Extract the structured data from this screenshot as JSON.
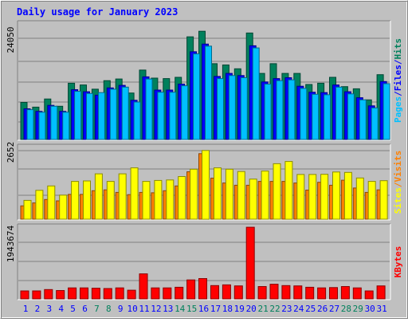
{
  "title": "Daily usage for January 2023",
  "colors": {
    "background": "#c0c0c0",
    "border_light": "#ffffff",
    "border_dark": "#808080",
    "plot_bg": "#c0c0c0",
    "grid": "#808080",
    "title": "#0000ff",
    "hits": "#00805c",
    "files": "#0000ff",
    "pages": "#00c0ff",
    "visits": "#ff8000",
    "sites": "#ffff00",
    "kbytes": "#ff0000",
    "weekday_label": "#0000ff",
    "weekend_label": "#00805c"
  },
  "chart_data": [
    {
      "type": "bar",
      "panel": "hits-files-pages",
      "categories": [
        "1",
        "2",
        "3",
        "4",
        "5",
        "6",
        "7",
        "8",
        "9",
        "10",
        "11",
        "12",
        "13",
        "14",
        "15",
        "16",
        "17",
        "18",
        "19",
        "20",
        "21",
        "22",
        "23",
        "24",
        "25",
        "26",
        "27",
        "28",
        "29",
        "30",
        "31"
      ],
      "ytick": "24050",
      "ylim": [
        0,
        27500
      ],
      "ylabel_parts": [
        {
          "text": "Pages",
          "color": "pages"
        },
        {
          "text": "/",
          "color": "files"
        },
        {
          "text": "Files",
          "color": "files"
        },
        {
          "text": "/",
          "color": "files"
        },
        {
          "text": "Hits",
          "color": "hits"
        }
      ],
      "series": [
        {
          "name": "Hits",
          "color": "hits",
          "values": [
            8700,
            7600,
            9500,
            7800,
            13200,
            12800,
            11800,
            13800,
            14200,
            10900,
            16300,
            14400,
            14300,
            14600,
            24100,
            25400,
            17800,
            17500,
            16600,
            25000,
            15500,
            17800,
            15500,
            15500,
            12900,
            13200,
            14600,
            12400,
            11900,
            9300,
            15200
          ]
        },
        {
          "name": "Files",
          "color": "files",
          "values": [
            7200,
            6600,
            8000,
            6600,
            11700,
            11200,
            10400,
            12100,
            12700,
            9200,
            14700,
            11600,
            11600,
            13000,
            20600,
            22400,
            14800,
            15500,
            15000,
            22000,
            13500,
            14300,
            14500,
            12500,
            11100,
            11000,
            12800,
            11200,
            9800,
            7900,
            13600
          ]
        },
        {
          "name": "Pages",
          "color": "pages",
          "values": [
            7000,
            6400,
            7800,
            6400,
            11300,
            10800,
            11000,
            11800,
            12300,
            8800,
            14200,
            11100,
            11100,
            12600,
            20100,
            21900,
            14300,
            15000,
            14500,
            21500,
            13000,
            13800,
            14000,
            12000,
            10600,
            10500,
            12300,
            10700,
            9300,
            7400,
            13100
          ]
        }
      ]
    },
    {
      "type": "bar",
      "panel": "sites-visits",
      "categories": [
        "1",
        "2",
        "3",
        "4",
        "5",
        "6",
        "7",
        "8",
        "9",
        "10",
        "11",
        "12",
        "13",
        "14",
        "15",
        "16",
        "17",
        "18",
        "19",
        "20",
        "21",
        "22",
        "23",
        "24",
        "25",
        "26",
        "27",
        "28",
        "29",
        "30",
        "31"
      ],
      "ytick": "2652",
      "ylim": [
        0,
        3200
      ],
      "ylabel_parts": [
        {
          "text": "Sites",
          "color": "sites"
        },
        {
          "text": "/",
          "color": "visits"
        },
        {
          "text": "Visits",
          "color": "visits"
        }
      ],
      "series": [
        {
          "name": "Visits",
          "color": "visits",
          "values": [
            580,
            710,
            860,
            800,
            1080,
            1080,
            1240,
            1280,
            1170,
            1070,
            1170,
            1150,
            1240,
            1450,
            2070,
            2860,
            1790,
            1580,
            1480,
            1480,
            1650,
            1650,
            1650,
            1580,
            1270,
            1610,
            1480,
            1700,
            1360,
            1170,
            1280
          ]
        },
        {
          "name": "Sites",
          "color": "sites",
          "values": [
            820,
            1260,
            1450,
            1050,
            1650,
            1670,
            1980,
            1650,
            1980,
            2240,
            1650,
            1690,
            1710,
            1860,
            2180,
            3000,
            2240,
            2180,
            2080,
            1750,
            2100,
            2420,
            2520,
            1950,
            1950,
            1960,
            2060,
            2040,
            1800,
            1650,
            1680
          ]
        }
      ]
    },
    {
      "type": "bar",
      "panel": "kbytes",
      "categories": [
        "1",
        "2",
        "3",
        "4",
        "5",
        "6",
        "7",
        "8",
        "9",
        "10",
        "11",
        "12",
        "13",
        "14",
        "15",
        "16",
        "17",
        "18",
        "19",
        "20",
        "21",
        "22",
        "23",
        "24",
        "25",
        "26",
        "27",
        "28",
        "29",
        "30",
        "31"
      ],
      "ytick": "1943674",
      "ylim": [
        0,
        2200000
      ],
      "ylabel_parts": [
        {
          "text": "KBytes",
          "color": "kbytes"
        }
      ],
      "series": [
        {
          "name": "KBytes",
          "color": "kbytes",
          "values": [
            240000,
            240000,
            280000,
            250000,
            330000,
            330000,
            320000,
            310000,
            330000,
            260000,
            750000,
            330000,
            330000,
            350000,
            570000,
            610000,
            400000,
            420000,
            390000,
            2150000,
            370000,
            440000,
            400000,
            390000,
            350000,
            330000,
            340000,
            370000,
            330000,
            240000,
            390000
          ]
        }
      ]
    }
  ],
  "day_label_colors": [
    "weekday",
    "weekday",
    "weekday",
    "weekday",
    "weekday",
    "weekday",
    "weekend",
    "weekend",
    "weekday",
    "weekday",
    "weekday",
    "weekday",
    "weekday",
    "weekend",
    "weekend",
    "weekday",
    "weekday",
    "weekday",
    "weekday",
    "weekday",
    "weekend",
    "weekend",
    "weekday",
    "weekday",
    "weekday",
    "weekday",
    "weekday",
    "weekend",
    "weekend",
    "weekday",
    "weekday"
  ]
}
